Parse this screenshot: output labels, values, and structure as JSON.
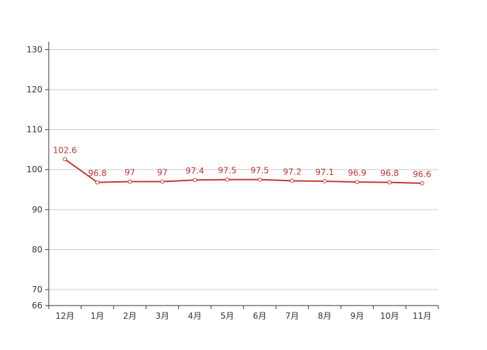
{
  "chart_data": {
    "type": "line",
    "categories": [
      "12月",
      "1月",
      "2月",
      "3月",
      "4月",
      "5月",
      "6月",
      "7月",
      "8月",
      "9月",
      "10月",
      "11月"
    ],
    "series": [
      {
        "values": [
          102.6,
          96.8,
          97,
          97,
          97.4,
          97.5,
          97.5,
          97.2,
          97.1,
          96.9,
          96.8,
          96.6
        ],
        "labels": [
          "102.6",
          "96.8",
          "97",
          "97",
          "97.4",
          "97.5",
          "97.5",
          "97.2",
          "97.1",
          "96.9",
          "96.8",
          "96.6"
        ],
        "color": "#c23531"
      }
    ],
    "ylim": [
      66,
      132
    ],
    "yticks": [
      66,
      70,
      80,
      90,
      100,
      110,
      120,
      130
    ],
    "grid": true,
    "title": "",
    "xlabel": "",
    "ylabel": ""
  }
}
